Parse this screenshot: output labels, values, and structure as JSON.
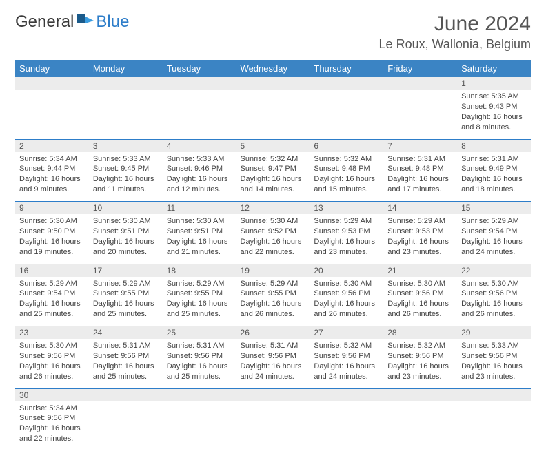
{
  "logo": {
    "text1": "General",
    "text2": "Blue"
  },
  "title": "June 2024",
  "location": "Le Roux, Wallonia, Belgium",
  "colors": {
    "header_bg": "#3b84c4",
    "border": "#2d7dc9",
    "daynum_bg": "#ececec",
    "text": "#444444"
  },
  "day_headers": [
    "Sunday",
    "Monday",
    "Tuesday",
    "Wednesday",
    "Thursday",
    "Friday",
    "Saturday"
  ],
  "weeks": [
    [
      null,
      null,
      null,
      null,
      null,
      null,
      {
        "n": "1",
        "sr": "Sunrise: 5:35 AM",
        "ss": "Sunset: 9:43 PM",
        "d1": "Daylight: 16 hours",
        "d2": "and 8 minutes."
      }
    ],
    [
      {
        "n": "2",
        "sr": "Sunrise: 5:34 AM",
        "ss": "Sunset: 9:44 PM",
        "d1": "Daylight: 16 hours",
        "d2": "and 9 minutes."
      },
      {
        "n": "3",
        "sr": "Sunrise: 5:33 AM",
        "ss": "Sunset: 9:45 PM",
        "d1": "Daylight: 16 hours",
        "d2": "and 11 minutes."
      },
      {
        "n": "4",
        "sr": "Sunrise: 5:33 AM",
        "ss": "Sunset: 9:46 PM",
        "d1": "Daylight: 16 hours",
        "d2": "and 12 minutes."
      },
      {
        "n": "5",
        "sr": "Sunrise: 5:32 AM",
        "ss": "Sunset: 9:47 PM",
        "d1": "Daylight: 16 hours",
        "d2": "and 14 minutes."
      },
      {
        "n": "6",
        "sr": "Sunrise: 5:32 AM",
        "ss": "Sunset: 9:48 PM",
        "d1": "Daylight: 16 hours",
        "d2": "and 15 minutes."
      },
      {
        "n": "7",
        "sr": "Sunrise: 5:31 AM",
        "ss": "Sunset: 9:48 PM",
        "d1": "Daylight: 16 hours",
        "d2": "and 17 minutes."
      },
      {
        "n": "8",
        "sr": "Sunrise: 5:31 AM",
        "ss": "Sunset: 9:49 PM",
        "d1": "Daylight: 16 hours",
        "d2": "and 18 minutes."
      }
    ],
    [
      {
        "n": "9",
        "sr": "Sunrise: 5:30 AM",
        "ss": "Sunset: 9:50 PM",
        "d1": "Daylight: 16 hours",
        "d2": "and 19 minutes."
      },
      {
        "n": "10",
        "sr": "Sunrise: 5:30 AM",
        "ss": "Sunset: 9:51 PM",
        "d1": "Daylight: 16 hours",
        "d2": "and 20 minutes."
      },
      {
        "n": "11",
        "sr": "Sunrise: 5:30 AM",
        "ss": "Sunset: 9:51 PM",
        "d1": "Daylight: 16 hours",
        "d2": "and 21 minutes."
      },
      {
        "n": "12",
        "sr": "Sunrise: 5:30 AM",
        "ss": "Sunset: 9:52 PM",
        "d1": "Daylight: 16 hours",
        "d2": "and 22 minutes."
      },
      {
        "n": "13",
        "sr": "Sunrise: 5:29 AM",
        "ss": "Sunset: 9:53 PM",
        "d1": "Daylight: 16 hours",
        "d2": "and 23 minutes."
      },
      {
        "n": "14",
        "sr": "Sunrise: 5:29 AM",
        "ss": "Sunset: 9:53 PM",
        "d1": "Daylight: 16 hours",
        "d2": "and 23 minutes."
      },
      {
        "n": "15",
        "sr": "Sunrise: 5:29 AM",
        "ss": "Sunset: 9:54 PM",
        "d1": "Daylight: 16 hours",
        "d2": "and 24 minutes."
      }
    ],
    [
      {
        "n": "16",
        "sr": "Sunrise: 5:29 AM",
        "ss": "Sunset: 9:54 PM",
        "d1": "Daylight: 16 hours",
        "d2": "and 25 minutes."
      },
      {
        "n": "17",
        "sr": "Sunrise: 5:29 AM",
        "ss": "Sunset: 9:55 PM",
        "d1": "Daylight: 16 hours",
        "d2": "and 25 minutes."
      },
      {
        "n": "18",
        "sr": "Sunrise: 5:29 AM",
        "ss": "Sunset: 9:55 PM",
        "d1": "Daylight: 16 hours",
        "d2": "and 25 minutes."
      },
      {
        "n": "19",
        "sr": "Sunrise: 5:29 AM",
        "ss": "Sunset: 9:55 PM",
        "d1": "Daylight: 16 hours",
        "d2": "and 26 minutes."
      },
      {
        "n": "20",
        "sr": "Sunrise: 5:30 AM",
        "ss": "Sunset: 9:56 PM",
        "d1": "Daylight: 16 hours",
        "d2": "and 26 minutes."
      },
      {
        "n": "21",
        "sr": "Sunrise: 5:30 AM",
        "ss": "Sunset: 9:56 PM",
        "d1": "Daylight: 16 hours",
        "d2": "and 26 minutes."
      },
      {
        "n": "22",
        "sr": "Sunrise: 5:30 AM",
        "ss": "Sunset: 9:56 PM",
        "d1": "Daylight: 16 hours",
        "d2": "and 26 minutes."
      }
    ],
    [
      {
        "n": "23",
        "sr": "Sunrise: 5:30 AM",
        "ss": "Sunset: 9:56 PM",
        "d1": "Daylight: 16 hours",
        "d2": "and 26 minutes."
      },
      {
        "n": "24",
        "sr": "Sunrise: 5:31 AM",
        "ss": "Sunset: 9:56 PM",
        "d1": "Daylight: 16 hours",
        "d2": "and 25 minutes."
      },
      {
        "n": "25",
        "sr": "Sunrise: 5:31 AM",
        "ss": "Sunset: 9:56 PM",
        "d1": "Daylight: 16 hours",
        "d2": "and 25 minutes."
      },
      {
        "n": "26",
        "sr": "Sunrise: 5:31 AM",
        "ss": "Sunset: 9:56 PM",
        "d1": "Daylight: 16 hours",
        "d2": "and 24 minutes."
      },
      {
        "n": "27",
        "sr": "Sunrise: 5:32 AM",
        "ss": "Sunset: 9:56 PM",
        "d1": "Daylight: 16 hours",
        "d2": "and 24 minutes."
      },
      {
        "n": "28",
        "sr": "Sunrise: 5:32 AM",
        "ss": "Sunset: 9:56 PM",
        "d1": "Daylight: 16 hours",
        "d2": "and 23 minutes."
      },
      {
        "n": "29",
        "sr": "Sunrise: 5:33 AM",
        "ss": "Sunset: 9:56 PM",
        "d1": "Daylight: 16 hours",
        "d2": "and 23 minutes."
      }
    ],
    [
      {
        "n": "30",
        "sr": "Sunrise: 5:34 AM",
        "ss": "Sunset: 9:56 PM",
        "d1": "Daylight: 16 hours",
        "d2": "and 22 minutes."
      },
      null,
      null,
      null,
      null,
      null,
      null
    ]
  ]
}
